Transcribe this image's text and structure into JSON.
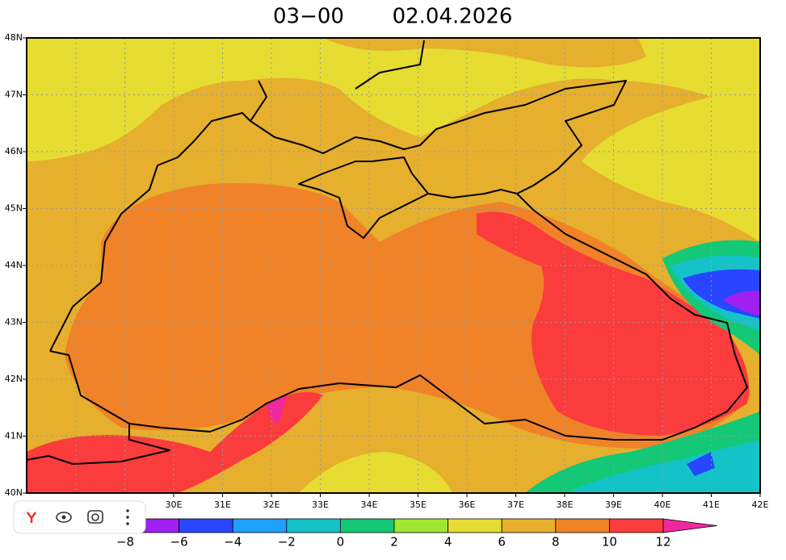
{
  "header": {
    "time": "03−00",
    "date": "02.04.2026"
  },
  "lat_labels": [
    "48N",
    "47N",
    "46N",
    "45N",
    "44N",
    "43N",
    "42N",
    "41N",
    "40N"
  ],
  "lon_labels": [
    "30E",
    "31E",
    "32E",
    "33E",
    "34E",
    "35E",
    "36E",
    "37E",
    "38E",
    "39E",
    "40E",
    "41E",
    "42E"
  ],
  "colorbar": {
    "labels": [
      "−8",
      "−6",
      "−4",
      "−2",
      "0",
      "2",
      "4",
      "6",
      "8",
      "10",
      "12"
    ],
    "colors": [
      "#a020f0",
      "#2846ff",
      "#1ea0ff",
      "#14c3c8",
      "#14c878",
      "#a0e632",
      "#e6dc32",
      "#e6af2d",
      "#f08228",
      "#fa3c3c"
    ],
    "over_color": "#f028a0"
  }
}
